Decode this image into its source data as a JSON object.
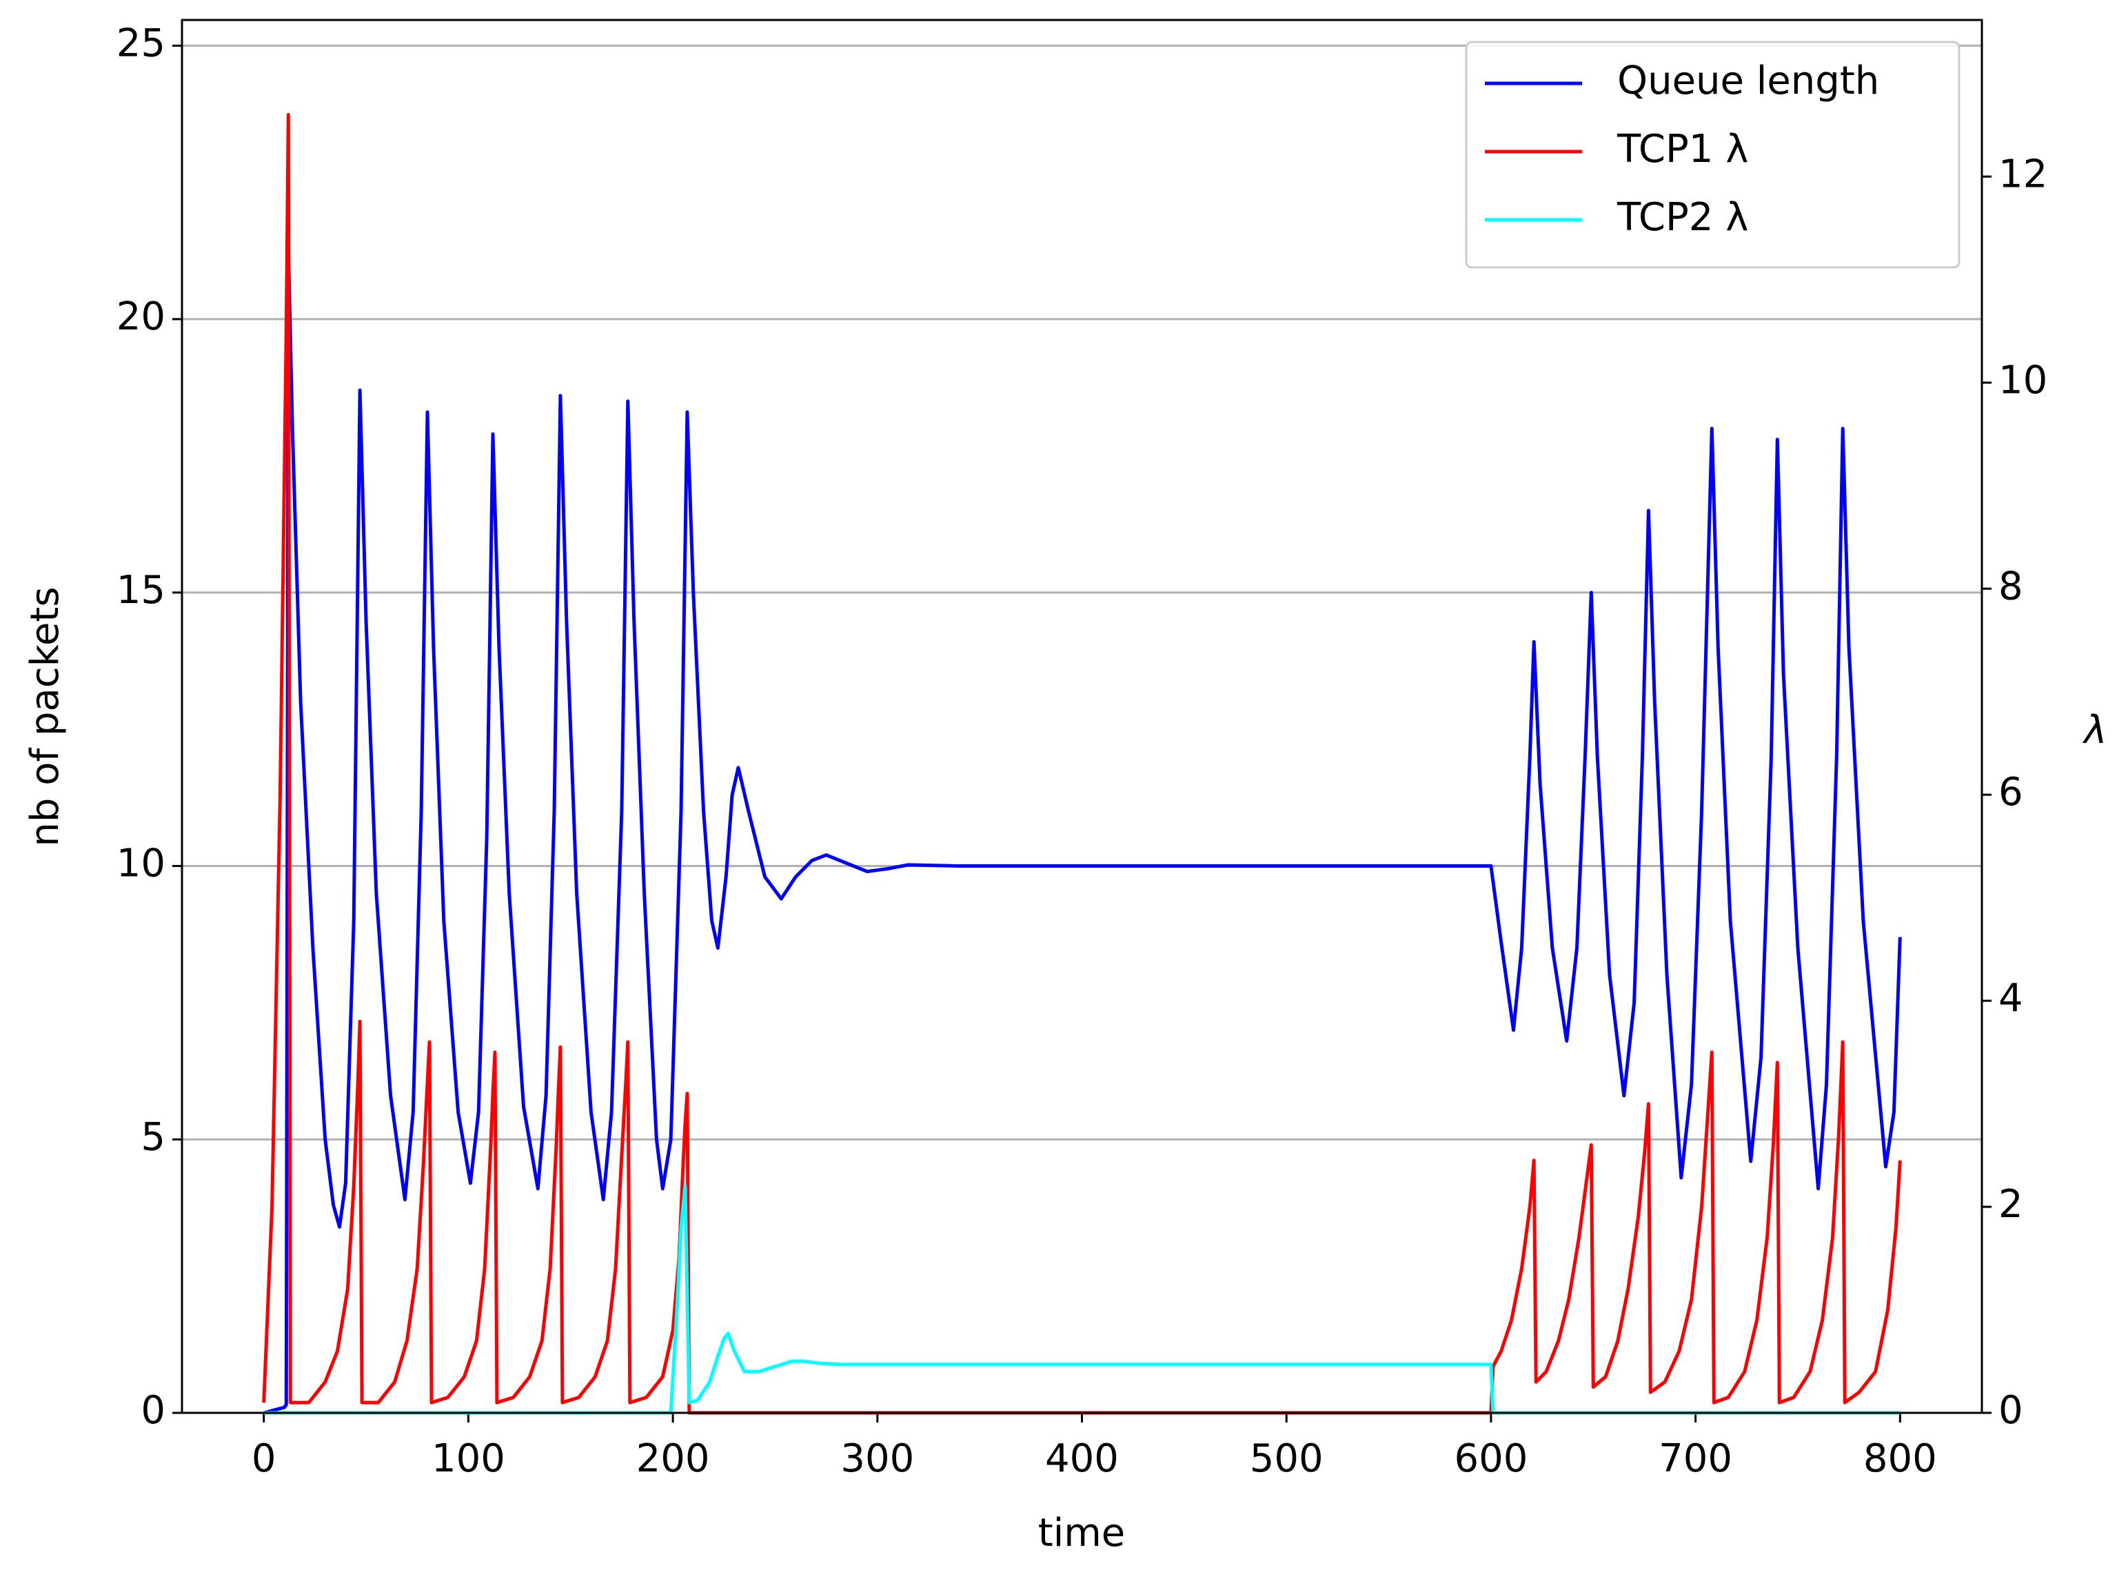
{
  "chart_data": {
    "type": "line",
    "x_label": "time",
    "y_label": "nb of packets",
    "y2_label": "λ",
    "xlim": [
      -40,
      840
    ],
    "xticks": [
      0,
      100,
      200,
      300,
      400,
      500,
      600,
      700,
      800
    ],
    "ylim": [
      0,
      25.47
    ],
    "yticks": [
      0,
      5,
      10,
      15,
      20,
      25
    ],
    "y2lim": [
      0,
      13.52
    ],
    "y2ticks": [
      0,
      2,
      4,
      6,
      8,
      10,
      12
    ],
    "grid": true,
    "legend": "upper right",
    "series": [
      {
        "name": "Queue length",
        "color": "#0000ff",
        "axis": "y",
        "x": [
          0,
          5,
          10,
          11,
          12,
          14,
          18,
          24,
          30,
          34,
          37,
          40,
          44,
          47,
          50,
          55,
          62,
          69,
          73,
          77,
          80,
          83,
          88,
          95,
          101,
          105,
          109,
          112,
          115,
          120,
          127,
          134,
          138,
          142,
          145,
          148,
          153,
          160,
          166,
          170,
          175,
          178,
          181,
          186,
          192,
          195,
          199,
          204,
          207,
          210,
          215,
          219,
          222,
          226,
          229,
          232,
          237,
          245,
          253,
          260,
          268,
          275,
          285,
          295,
          305,
          315,
          340,
          600,
          605,
          611,
          615,
          619,
          621,
          624,
          630,
          637,
          642,
          646,
          649,
          652,
          658,
          665,
          670,
          674,
          677,
          680,
          686,
          693,
          698,
          703,
          708,
          711,
          717,
          727,
          732,
          737,
          740,
          743,
          750,
          760,
          764,
          769,
          772,
          775,
          782,
          793,
          797,
          800
        ],
        "values": [
          0,
          0.05,
          0.1,
          0.15,
          21.3,
          18,
          13,
          8.5,
          5,
          3.8,
          3.4,
          4.2,
          9,
          18.7,
          14.5,
          9.5,
          5.8,
          3.9,
          5.5,
          11,
          18.3,
          14,
          9,
          5.5,
          4.2,
          5.5,
          10.5,
          17.9,
          14,
          9.5,
          5.6,
          4.1,
          5.8,
          11,
          18.6,
          14.5,
          9.5,
          5.5,
          3.9,
          5.5,
          11,
          18.5,
          14.5,
          9.5,
          5,
          4.1,
          5,
          11,
          18.3,
          15,
          11,
          9,
          8.5,
          9.8,
          11.3,
          11.8,
          11,
          9.8,
          9.4,
          9.8,
          10.1,
          10.2,
          10.05,
          9.9,
          9.95,
          10.02,
          10,
          10,
          8.6,
          7.0,
          8.5,
          12,
          14.1,
          11.5,
          8.5,
          6.8,
          8.5,
          12,
          15.0,
          12,
          8,
          5.8,
          7.5,
          12,
          16.5,
          13,
          8,
          4.3,
          6,
          11,
          18.0,
          14,
          9,
          4.6,
          6.5,
          12,
          17.8,
          13.5,
          8.5,
          4.1,
          6,
          12,
          18.0,
          14,
          9,
          4.5,
          5.5,
          8.7
        ]
      },
      {
        "name": "TCP1 λ",
        "color": "#ff0000",
        "axis": "y2",
        "x": [
          0,
          4,
          8,
          11,
          12,
          13,
          22,
          30,
          36,
          41,
          44,
          46,
          47,
          48,
          56,
          64,
          70,
          75,
          78,
          80,
          81,
          82,
          90,
          98,
          104,
          108,
          111,
          112,
          113,
          114,
          122,
          130,
          136,
          140,
          143,
          144,
          145,
          146,
          154,
          162,
          168,
          172,
          175,
          177,
          178,
          179,
          187,
          195,
          200,
          203,
          205,
          206,
          207,
          208,
          600,
          601,
          605,
          610,
          615,
          619,
          621,
          622,
          627,
          633,
          638,
          643,
          647,
          649,
          650,
          656,
          662,
          667,
          672,
          675,
          677,
          678,
          685,
          692,
          698,
          703,
          706,
          708,
          709,
          716,
          724,
          730,
          735,
          738,
          740,
          741,
          748,
          756,
          762,
          767,
          770,
          772,
          773,
          780,
          788,
          794,
          798,
          800
        ],
        "values": [
          0.1,
          2,
          6,
          10.5,
          12.6,
          0.1,
          0.1,
          0.3,
          0.6,
          1.2,
          2.2,
          3.2,
          3.8,
          0.1,
          0.1,
          0.3,
          0.7,
          1.4,
          2.4,
          3.2,
          3.6,
          0.1,
          0.15,
          0.35,
          0.7,
          1.4,
          2.6,
          3.1,
          3.5,
          0.1,
          0.15,
          0.35,
          0.7,
          1.4,
          2.6,
          3.1,
          3.55,
          0.1,
          0.15,
          0.35,
          0.7,
          1.4,
          2.5,
          3.2,
          3.6,
          0.1,
          0.15,
          0.35,
          0.8,
          1.5,
          2.4,
          2.8,
          3.1,
          0,
          0,
          0.45,
          0.6,
          0.9,
          1.4,
          2,
          2.45,
          0.3,
          0.4,
          0.7,
          1.1,
          1.7,
          2.3,
          2.6,
          0.25,
          0.35,
          0.7,
          1.2,
          1.9,
          2.5,
          3.0,
          0.2,
          0.3,
          0.6,
          1.1,
          2.0,
          2.9,
          3.5,
          0.1,
          0.15,
          0.4,
          0.9,
          1.7,
          2.6,
          3.4,
          0.1,
          0.15,
          0.4,
          0.9,
          1.7,
          2.7,
          3.6,
          0.1,
          0.2,
          0.4,
          1.0,
          1.8,
          2.45
        ]
      },
      {
        "name": "TCP2 λ",
        "color": "#00ffff",
        "axis": "y2",
        "x": [
          0,
          199,
          202,
          204,
          206,
          208,
          212,
          218,
          222,
          225,
          227,
          230,
          235,
          242,
          250,
          258,
          264,
          272,
          282,
          300,
          600,
          601,
          800
        ],
        "values": [
          0,
          0,
          1.0,
          1.8,
          2.2,
          0.1,
          0.12,
          0.3,
          0.55,
          0.72,
          0.77,
          0.6,
          0.4,
          0.4,
          0.45,
          0.5,
          0.5,
          0.48,
          0.47,
          0.47,
          0.47,
          0,
          0
        ]
      }
    ]
  }
}
